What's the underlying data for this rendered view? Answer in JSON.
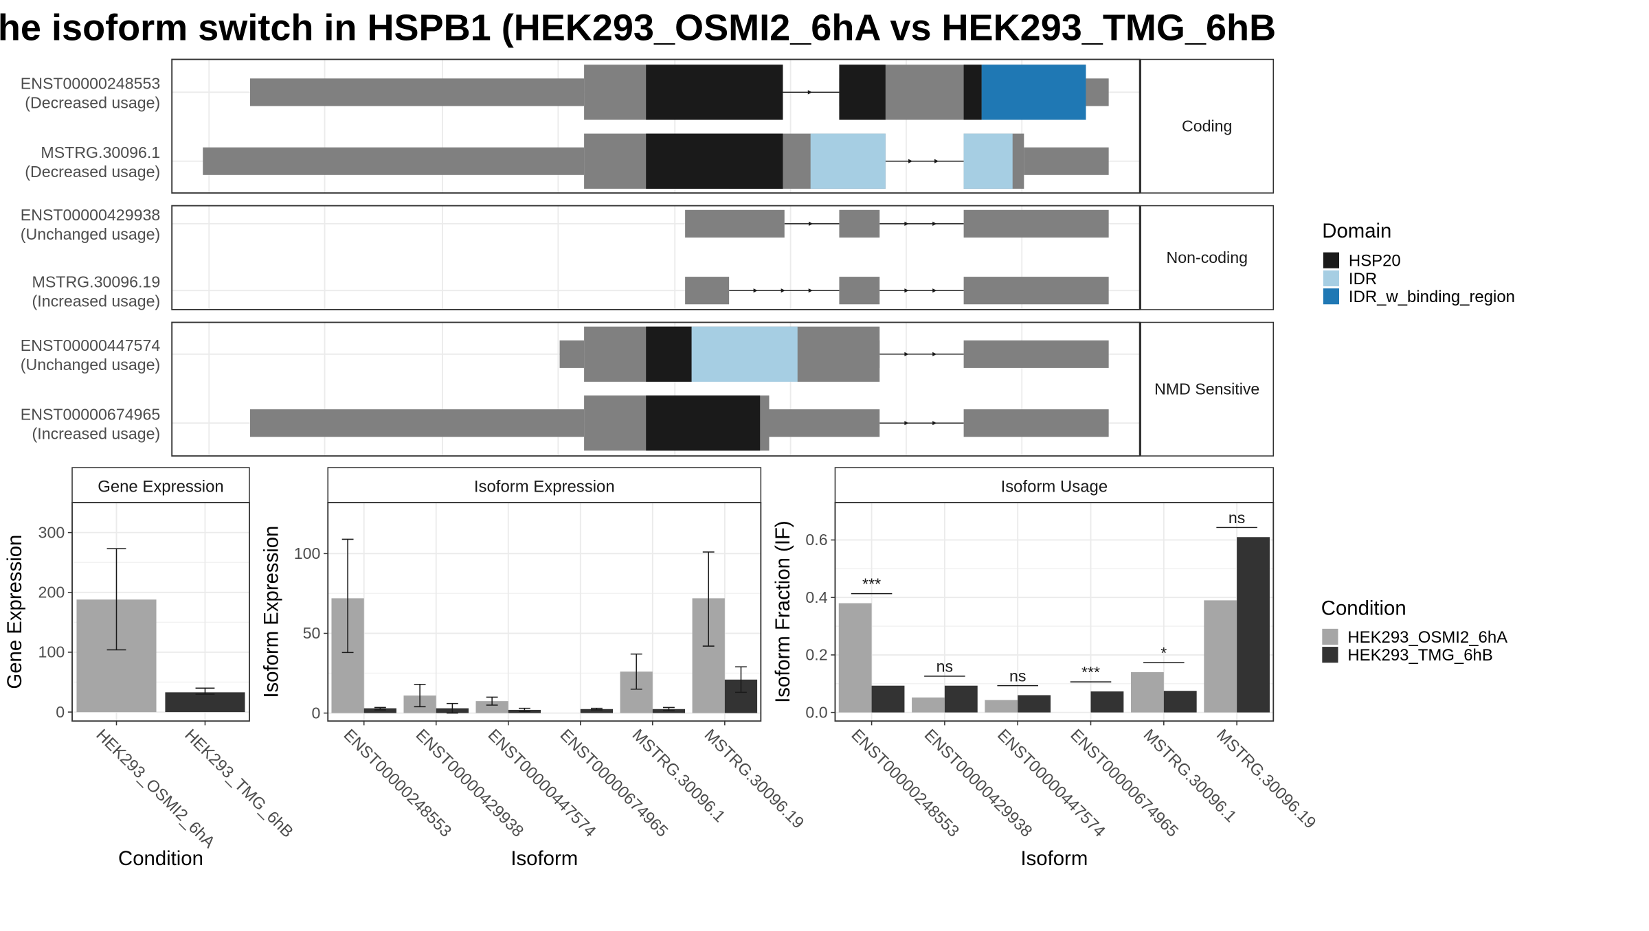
{
  "title": "he isoform switch in HSPB1 (HEK293_OSMI2_6hA vs HEK293_TMG_6hB",
  "colors": {
    "exon": "#808080",
    "HSP20": "#1a1a1a",
    "IDR": "#a6cee3",
    "IDR_w_binding_region": "#1f78b4",
    "cond1": "#a6a6a6",
    "cond2": "#333333",
    "strip_bg": "#ffffff",
    "grid": "#ebebeb"
  },
  "legend_domain": {
    "title": "Domain",
    "items": [
      "HSP20",
      "IDR",
      "IDR_w_binding_region"
    ]
  },
  "legend_condition": {
    "title": "Condition",
    "items": [
      "HEK293_OSMI2_6hA",
      "HEK293_TMG_6hB"
    ]
  },
  "structure": {
    "panels": [
      {
        "label": "Coding",
        "isoforms": [
          {
            "id": "ENST00000248553",
            "usage": "(Decreased usage)",
            "utr": [
              [
                55,
                1080
              ],
              [
                1280,
                1665
              ],
              [
                1863,
                1960
              ],
              [
                2195,
                2245
              ],
              [
                2620,
                2690
              ]
            ],
            "cds": [
              [
                1080,
                1690
              ],
              [
                1863,
                2250
              ],
              [
                2245,
                2620
              ]
            ],
            "domains": [
              [
                "HSP20",
                1270,
                1690
              ],
              [
                "HSP20",
                1863,
                2005
              ],
              [
                "HSP20",
                2245,
                2300
              ],
              [
                "IDR_w_binding_region",
                2300,
                2620
              ]
            ]
          },
          {
            "id": "MSTRG.30096.1",
            "usage": "(Decreased usage)",
            "utr": [
              [
                2430,
                2690
              ]
            ],
            "cds": [
              [
                1080,
                1690
              ],
              [
                1525,
                2005
              ],
              [
                2245,
                2430
              ]
            ],
            "domains": [
              [
                "HSP20",
                1270,
                1690
              ],
              [
                "IDR",
                1775,
                2005
              ],
              [
                "IDR",
                2245,
                2395
              ]
            ],
            "utr_left": [
              [
                -90,
                1080
              ]
            ]
          }
        ]
      },
      {
        "label": "Non-coding",
        "isoforms": [
          {
            "id": "ENST00000429938",
            "usage": "(Unchanged usage)",
            "utr": [
              [
                1390,
                1695
              ],
              [
                1863,
                1987
              ],
              [
                2245,
                2690
              ]
            ],
            "cds": [],
            "domains": []
          },
          {
            "id": "MSTRG.30096.19",
            "usage": "(Increased usage)",
            "utr": [
              [
                1390,
                1525
              ],
              [
                1863,
                1987
              ],
              [
                2245,
                2690
              ]
            ],
            "cds": [],
            "domains": []
          }
        ]
      },
      {
        "label": "NMD Sensitive",
        "isoforms": [
          {
            "id": "ENST00000447574",
            "usage": "(Unchanged usage)",
            "utr": [
              [
                1855,
                1987
              ],
              [
                2245,
                2690
              ]
            ],
            "cds": [
              [
                1080,
                1987
              ]
            ],
            "domains": [
              [
                "HSP20",
                1270,
                1410
              ],
              [
                "IDR",
                1410,
                1735
              ]
            ],
            "utr_left": [
              [
                1005,
                1080
              ]
            ]
          },
          {
            "id": "ENST00000674965",
            "usage": "(Increased usage)",
            "utr": [
              [
                1595,
                1625
              ],
              [
                1625,
                1987
              ],
              [
                2245,
                2690
              ]
            ],
            "cds": [
              [
                1080,
                1648
              ]
            ],
            "domains": [
              [
                "HSP20",
                1270,
                1620
              ]
            ],
            "utr_left": [
              [
                55,
                1080
              ]
            ]
          }
        ]
      }
    ]
  },
  "chart_data": [
    {
      "type": "bar",
      "title": "Gene Expression",
      "xlabel": "Condition",
      "ylabel": "Gene Expression",
      "categories": [
        "HEK293_OSMI2_6hA",
        "HEK293_TMG_6hB"
      ],
      "values": [
        188,
        33
      ],
      "err_low": [
        104,
        30
      ],
      "err_high": [
        273,
        40
      ],
      "ylim": [
        -15,
        350
      ],
      "yticks": [
        0,
        100,
        200,
        300
      ]
    },
    {
      "type": "bar",
      "title": "Isoform Expression",
      "xlabel": "Isoform",
      "ylabel": "Isoform Expression",
      "categories": [
        "ENST00000248553",
        "ENST00000429938",
        "ENST00000447574",
        "ENST00000674965",
        "MSTRG.30096.1",
        "MSTRG.30096.19"
      ],
      "series": [
        {
          "name": "HEK293_OSMI2_6hA",
          "values": [
            72,
            11,
            7.5,
            0,
            26,
            72
          ],
          "err_low": [
            38,
            4,
            5,
            0,
            15,
            42
          ],
          "err_high": [
            109,
            18,
            10,
            0,
            37,
            101
          ]
        },
        {
          "name": "HEK293_TMG_6hB",
          "values": [
            3,
            3,
            2,
            2.5,
            2.5,
            21
          ],
          "err_low": [
            2,
            0,
            1,
            2,
            1.5,
            13
          ],
          "err_high": [
            3.5,
            6,
            3,
            3,
            3.5,
            29
          ]
        }
      ],
      "ylim": [
        -5,
        132
      ],
      "yticks": [
        0,
        50,
        100
      ]
    },
    {
      "type": "bar",
      "title": "Isoform Usage",
      "xlabel": "Isoform",
      "ylabel": "Isoform Fraction (IF)",
      "categories": [
        "ENST00000248553",
        "ENST00000429938",
        "ENST00000447574",
        "ENST00000674965",
        "MSTRG.30096.1",
        "MSTRG.30096.19"
      ],
      "series": [
        {
          "name": "HEK293_OSMI2_6hA",
          "values": [
            0.38,
            0.052,
            0.043,
            0,
            0.14,
            0.39
          ]
        },
        {
          "name": "HEK293_TMG_6hB",
          "values": [
            0.093,
            0.093,
            0.06,
            0.073,
            0.075,
            0.61
          ]
        }
      ],
      "significance": [
        "***",
        "ns",
        "ns",
        "***",
        "*",
        "ns"
      ],
      "ylim": [
        -0.03,
        0.73
      ],
      "yticks": [
        0.0,
        0.2,
        0.4,
        0.6
      ],
      "ytick_labels": [
        "0.0",
        "0.2",
        "0.4",
        "0.6"
      ]
    }
  ]
}
